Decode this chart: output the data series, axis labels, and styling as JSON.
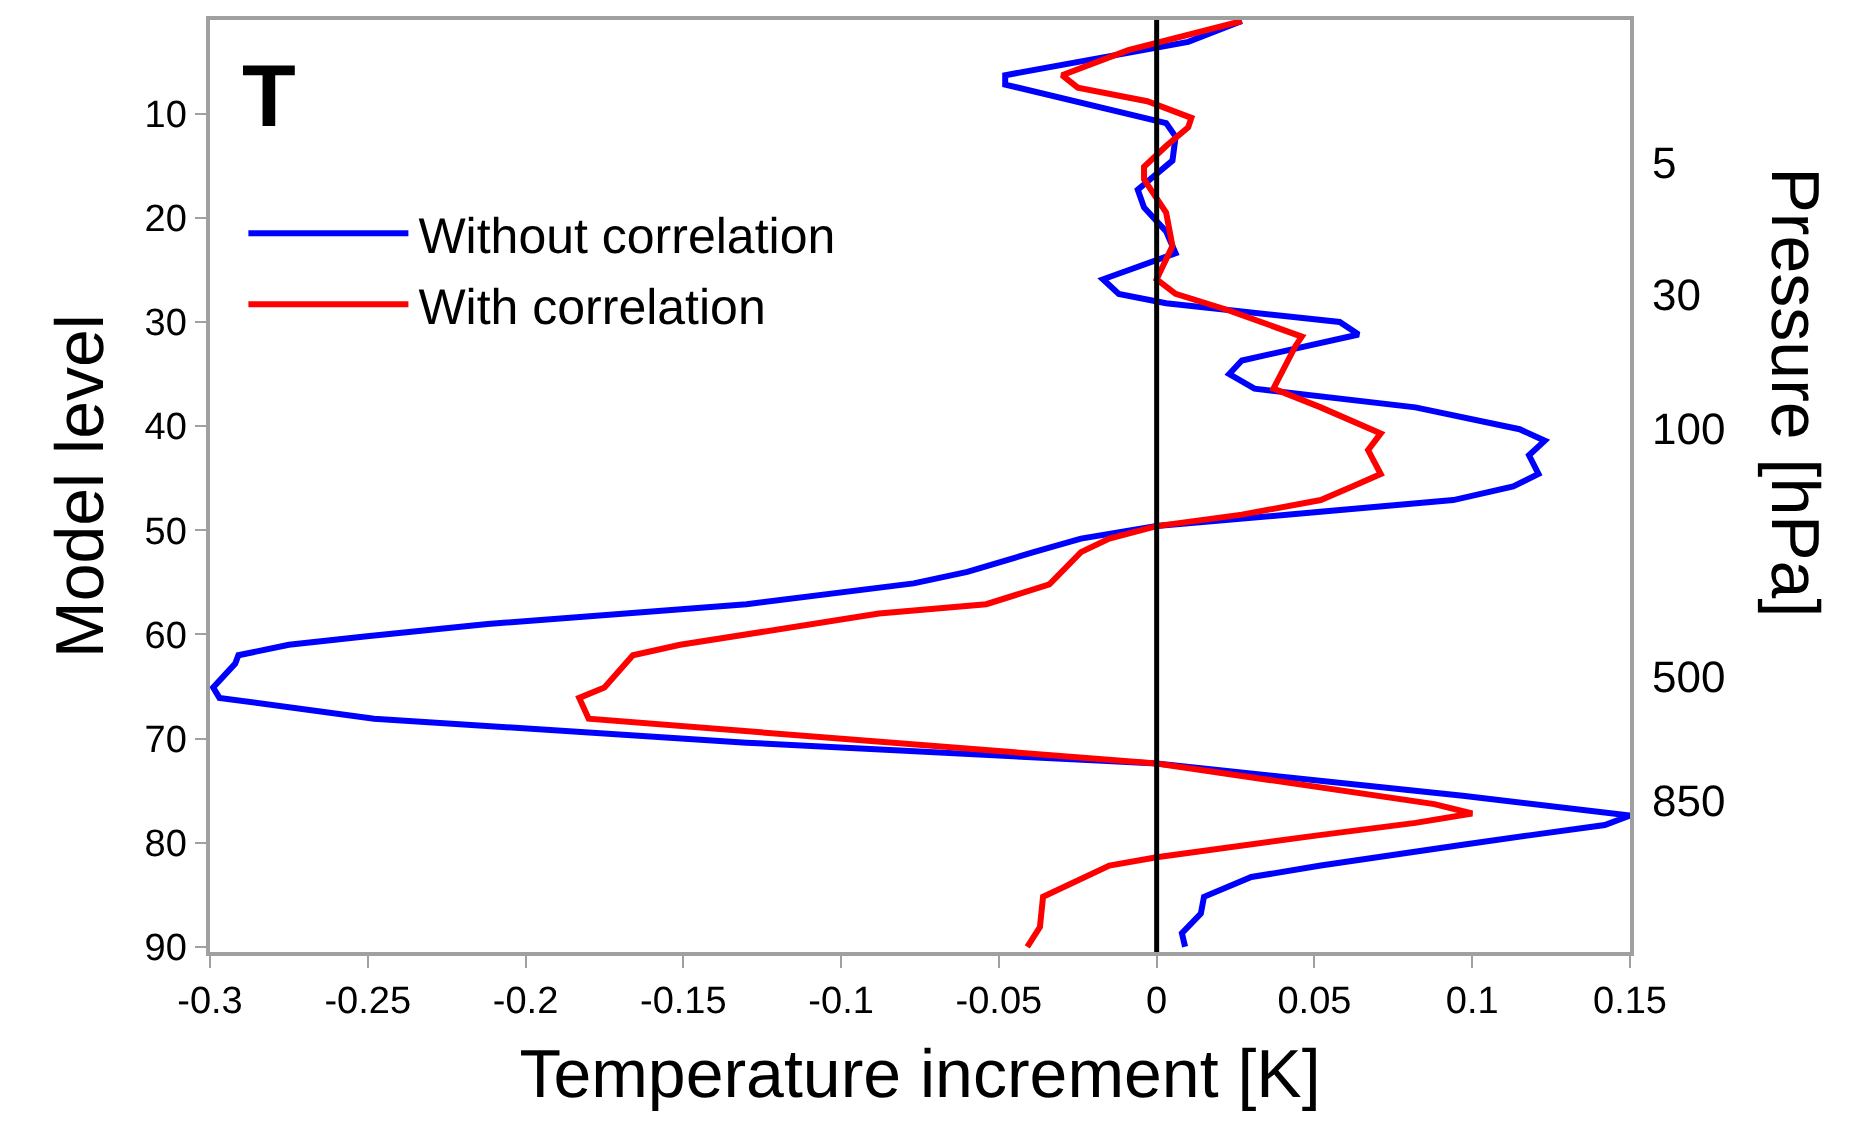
{
  "chart_data": {
    "type": "line",
    "orientation": "horizontal",
    "title": "T",
    "xlabel": "Temperature increment [K]",
    "ylabel": "Model level",
    "y2label": "Pressure [hPa]",
    "xlim": [
      -0.3,
      0.15
    ],
    "xticks": [
      -0.3,
      -0.25,
      -0.2,
      -0.15,
      -0.1,
      -0.05,
      0,
      0.05,
      0.1,
      0.15
    ],
    "ylim": [
      90.5,
      1
    ],
    "yticks": [
      10,
      20,
      30,
      40,
      50,
      60,
      70,
      80,
      90
    ],
    "annotations": [
      "5",
      "30",
      "100",
      "500",
      "850"
    ],
    "legend": "top left",
    "marker": "none",
    "line_style": "solid",
    "ref_lines": [
      {
        "axis": "x",
        "value": 0,
        "color": "#000000"
      }
    ],
    "series": [
      {
        "name": "Without correlation",
        "color": "#0000ff",
        "x": [
          1.1,
          3.1,
          6.3,
          7.2,
          10.9,
          12.2,
          14.5,
          17.3,
          19,
          21.3,
          23.4,
          25.9,
          27.3,
          28.2,
          30,
          31.2,
          33.7,
          35,
          36.4,
          38.2,
          40.3,
          41.4,
          42.8,
          44.6,
          45.8,
          47.1,
          49.6,
          50.8,
          52.1,
          54,
          55.1,
          57.1,
          59,
          60.2,
          61,
          62,
          62.8,
          65.1,
          66.1,
          68.1,
          70.4,
          72.4,
          75.5,
          77.4,
          78.3,
          79.3,
          80.2,
          82.2,
          83.3,
          85.2,
          86.8,
          88.7,
          90
        ],
        "values": [
          0.027,
          0.01,
          -0.048,
          -0.048,
          0.003,
          0.006,
          0.005,
          -0.006,
          -0.004,
          0.003,
          0.006,
          -0.017,
          -0.012,
          0.003,
          0.058,
          0.064,
          0.027,
          0.023,
          0.031,
          0.082,
          0.115,
          0.123,
          0.118,
          0.121,
          0.113,
          0.094,
          0.0,
          -0.024,
          -0.039,
          -0.06,
          -0.077,
          -0.13,
          -0.212,
          -0.251,
          -0.275,
          -0.291,
          -0.292,
          -0.299,
          -0.297,
          -0.248,
          -0.13,
          0.0,
          0.097,
          0.15,
          0.142,
          0.118,
          0.097,
          0.052,
          0.03,
          0.015,
          0.014,
          0.008,
          0.009
        ]
      },
      {
        "name": "With correlation",
        "color": "#ff0000",
        "x": [
          1.1,
          3.9,
          6.3,
          7.5,
          8.8,
          10.4,
          11.3,
          13.1,
          15.1,
          16.3,
          19.5,
          22.7,
          25.9,
          27.3,
          28.8,
          31.4,
          32.3,
          36.4,
          38.2,
          40.7,
          42.3,
          44.6,
          45.8,
          47.1,
          48.5,
          49.6,
          50.8,
          52.1,
          55.2,
          57.1,
          58,
          61,
          62,
          65.1,
          66.1,
          68.1,
          72.4,
          76.3,
          77.2,
          78.1,
          79.3,
          81.4,
          82.2,
          85.2,
          88.1,
          90
        ],
        "values": [
          0.027,
          -0.009,
          -0.03,
          -0.025,
          -0.003,
          0.011,
          0.01,
          0.003,
          -0.004,
          -0.004,
          0.003,
          0.005,
          0.0,
          0.006,
          0.022,
          0.046,
          0.044,
          0.037,
          0.052,
          0.071,
          0.067,
          0.071,
          0.062,
          0.052,
          0.027,
          0.0,
          -0.015,
          -0.024,
          -0.034,
          -0.054,
          -0.088,
          -0.151,
          -0.166,
          -0.175,
          -0.183,
          -0.18,
          0.0,
          0.088,
          0.1,
          0.082,
          0.051,
          0.0,
          -0.015,
          -0.036,
          -0.037,
          -0.041
        ]
      }
    ]
  }
}
